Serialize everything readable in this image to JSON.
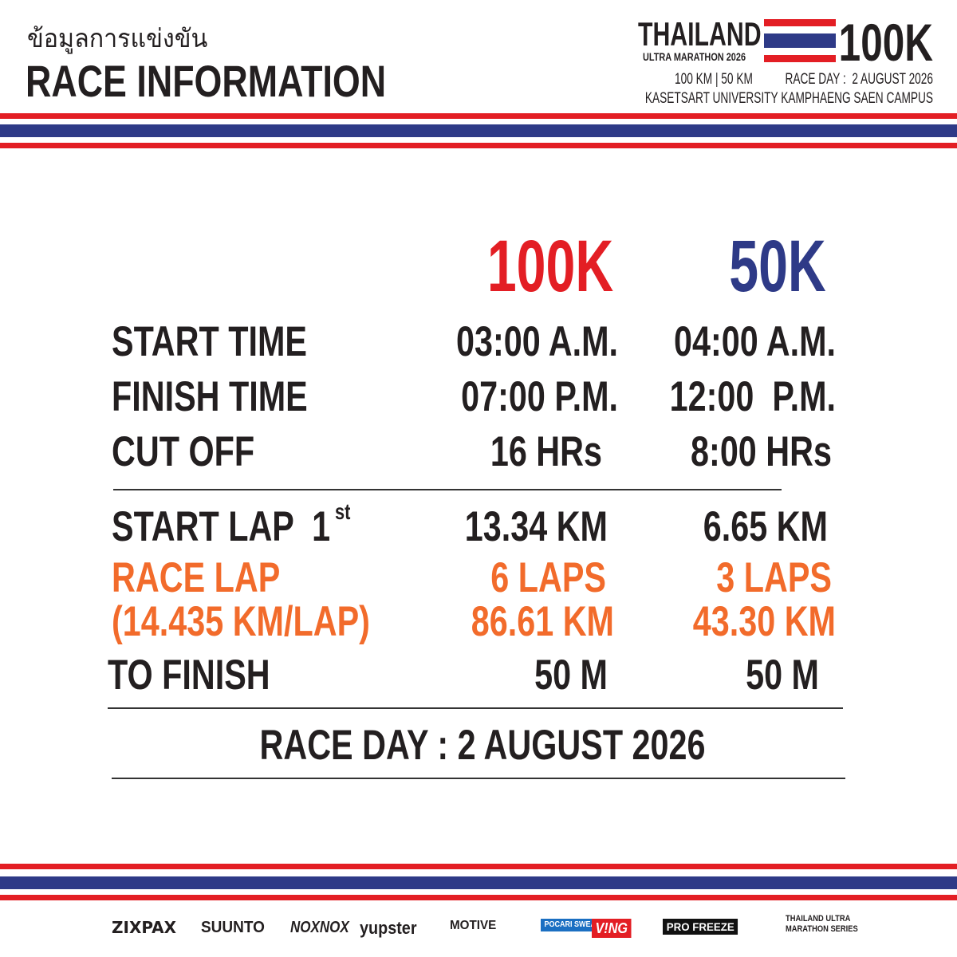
{
  "header": {
    "title_th": "ข้อมูลการแข่งขัน",
    "title": "RACE INFORMATION"
  },
  "logo": {
    "name": "THAILAND",
    "subtitle": "ULTRA MARATHON 2026",
    "distance": "100K",
    "info": "100 KM | 50 KM",
    "race_day": "RACE DAY :  2 AUGUST 2026",
    "venue": "KASETSART UNIVERSITY KAMPHAENG SAEN CAMPUS"
  },
  "table": {
    "columns": [
      "100K",
      "50K"
    ],
    "rows": [
      {
        "label": "START TIME",
        "values": [
          "03:00 A.M.",
          "04:00 A.M."
        ]
      },
      {
        "label": "FINISH TIME",
        "values": [
          "07:00 P.M.",
          "12:00  P.M."
        ]
      },
      {
        "label": "CUT OFF",
        "values": [
          "16 HRs",
          "8:00 HRs"
        ]
      },
      {
        "label": "START LAP  1",
        "suffix": "st",
        "values": [
          "13.34 KM",
          "6.65 KM"
        ]
      },
      {
        "label": "RACE LAP",
        "values": [
          "6 LAPS",
          "3 LAPS"
        ]
      },
      {
        "label": "(14.435 KM/LAP)",
        "values": [
          "86.61 KM",
          "43.30 KM"
        ]
      },
      {
        "label": "TO FINISH",
        "values": [
          "50 M",
          "50 M"
        ]
      }
    ]
  },
  "footer": {
    "race_day": "RACE DAY : 2 AUGUST 2026"
  },
  "sponsors": [
    "ZIXPAX",
    "SUUNTO",
    "NOXNOX",
    "yupster",
    "MOTIVE",
    "POCARI SWEAT",
    "V!NG",
    "PRO FREEZE",
    "THAILAND ULTRA MARATHON SERIES"
  ]
}
